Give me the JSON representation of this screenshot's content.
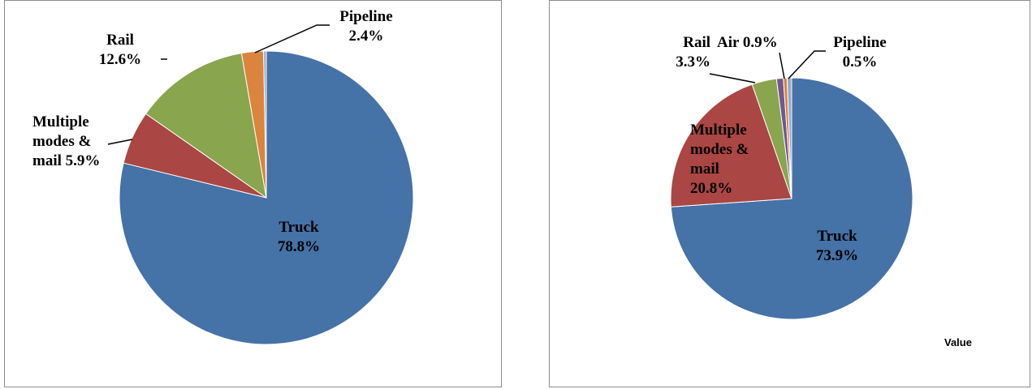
{
  "colors": {
    "truck": "#4572A7",
    "multiple": "#AA4643",
    "rail": "#89A54E",
    "air": "#71588F",
    "pipeline": "#DB843D",
    "other": "#93A9CF"
  },
  "chart_data": [
    {
      "type": "pie",
      "title": "",
      "slices": [
        {
          "name": "Truck",
          "value": 78.8,
          "label": "Truck\n78.8%",
          "color": "#4572A7"
        },
        {
          "name": "Multiple modes & mail",
          "value": 5.9,
          "label": "Multiple\nmodes &\nmail 5.9%",
          "color": "#AA4643"
        },
        {
          "name": "Rail",
          "value": 12.6,
          "label": "Rail\n12.6%",
          "color": "#89A54E"
        },
        {
          "name": "Pipeline",
          "value": 2.4,
          "label": "Pipeline\n2.4%",
          "color": "#DB843D"
        },
        {
          "name": "Other",
          "value": 0.3,
          "label": "",
          "color": "#93A9CF"
        }
      ]
    },
    {
      "type": "pie",
      "title": "",
      "caption": "Value",
      "slices": [
        {
          "name": "Truck",
          "value": 73.9,
          "label": "Truck\n73.9%",
          "color": "#4572A7"
        },
        {
          "name": "Multiple modes & mail",
          "value": 20.8,
          "label": "Multiple\nmodes &\nmail\n20.8%",
          "color": "#AA4643"
        },
        {
          "name": "Rail",
          "value": 3.3,
          "label": "Rail\n3.3%",
          "color": "#89A54E"
        },
        {
          "name": "Air",
          "value": 0.9,
          "label": "Air 0.9%",
          "color": "#71588F"
        },
        {
          "name": "Pipeline",
          "value": 0.5,
          "label": "Pipeline\n0.5%",
          "color": "#DB843D"
        },
        {
          "name": "Other",
          "value": 0.6,
          "label": "",
          "color": "#93A9CF"
        }
      ]
    }
  ]
}
